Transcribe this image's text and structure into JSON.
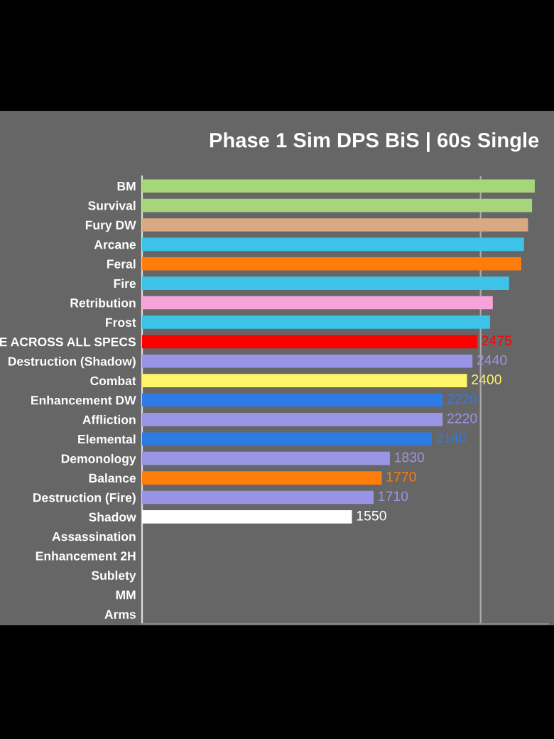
{
  "chart_data": {
    "type": "bar",
    "orientation": "horizontal",
    "title": "Phase 1 Sim DPS BiS | 60s Single",
    "categories": [
      "BM",
      "Survival",
      "Fury DW",
      "Arcane",
      "Feral",
      "Fire",
      "Retribution",
      "Frost",
      "E ACROSS ALL SPECS",
      "Destruction (Shadow)",
      "Combat",
      "Enhancement DW",
      "Affliction",
      "Elemental",
      "Demonology",
      "Balance",
      "Destruction (Fire)",
      "Shadow",
      "Assassination",
      "Enhancement 2H",
      "Sublety",
      "MM",
      "Arms"
    ],
    "values": [
      2900,
      2880,
      2850,
      2820,
      2800,
      2710,
      2590,
      2570,
      2475,
      2440,
      2400,
      2220,
      2220,
      2140,
      1830,
      1770,
      1710,
      1550,
      null,
      null,
      null,
      null,
      null
    ],
    "colors": [
      "#a6d67a",
      "#a6d67a",
      "#d9a982",
      "#3ec3e8",
      "#ff7d0a",
      "#3ec3e8",
      "#f5a3d8",
      "#3ec3e8",
      "#ff0000",
      "#9a94e6",
      "#fff468",
      "#2f7be6",
      "#9a94e6",
      "#2f7be6",
      "#9a94e6",
      "#ff7d0a",
      "#9a94e6",
      "#ffffff",
      "#9a94e6",
      "#9a94e6",
      "#9a94e6",
      "#9a94e6",
      "#9a94e6"
    ],
    "value_labels": [
      null,
      null,
      null,
      null,
      null,
      null,
      null,
      null,
      "2475",
      "2440",
      "2400",
      "2220",
      "2220",
      "2140",
      "1830",
      "1770",
      "1710",
      "1550",
      null,
      null,
      null,
      null,
      null
    ],
    "xlim": [
      0,
      3000
    ],
    "ref_lines": [
      {
        "axis": "x",
        "value": 2500,
        "color": "#aaaaaa"
      }
    ],
    "tick_labels": "y"
  }
}
